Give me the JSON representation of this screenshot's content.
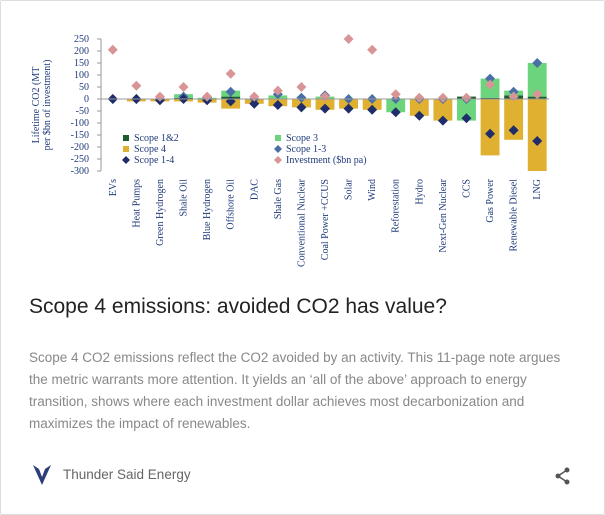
{
  "chart_data": {
    "type": "bar",
    "y_label": [
      "Lifetime CO2 (MT",
      "per $bn of investment)"
    ],
    "categories": [
      "EVs",
      "Heat Pumps",
      "Green Hydrogen",
      "Shale Oil",
      "Blue Hydrogen",
      "Offshore Oil",
      "DAC",
      "Shale Gas",
      "Conventional Nuclear",
      "Coal Power +CCUS",
      "Solar",
      "Wind",
      "Reforestation",
      "Hydro",
      "Next-Gen Nuclear",
      "CCS",
      "Gas Power",
      "Renewable Diesel",
      "LNG"
    ],
    "series": [
      {
        "name": "Scope 1&2",
        "color": "#1e5c2e",
        "kind": "bar",
        "values": [
          0,
          0,
          0,
          5,
          0,
          10,
          0,
          0,
          0,
          0,
          0,
          0,
          0,
          0,
          0,
          10,
          5,
          15,
          10
        ]
      },
      {
        "name": "Scope 3",
        "color": "#6dd47e",
        "kind": "bar",
        "values": [
          0,
          0,
          0,
          15,
          5,
          25,
          0,
          15,
          0,
          10,
          0,
          0,
          -55,
          0,
          0,
          -90,
          80,
          20,
          140
        ]
      },
      {
        "name": "Scope 4",
        "color": "#e0b030",
        "kind": "bar",
        "values": [
          0,
          -10,
          -10,
          -10,
          -15,
          -40,
          -20,
          -30,
          -35,
          -45,
          -40,
          -45,
          0,
          -70,
          -90,
          0,
          -235,
          -170,
          -300
        ]
      },
      {
        "name": "Scope 1-3",
        "color": "#4a6fa5",
        "kind": "diamond",
        "values": [
          0,
          0,
          0,
          10,
          5,
          30,
          0,
          20,
          5,
          15,
          0,
          0,
          0,
          0,
          0,
          0,
          85,
          30,
          150
        ]
      },
      {
        "name": "Scope 1-4",
        "color": "#1f2d6b",
        "kind": "diamond",
        "values": [
          0,
          0,
          -5,
          0,
          -5,
          -10,
          -20,
          -25,
          -35,
          -40,
          -40,
          -45,
          -55,
          -70,
          -90,
          -80,
          -145,
          -130,
          -175
        ]
      },
      {
        "name": "Investment ($bn pa)",
        "color": "#d99595",
        "kind": "diamond",
        "values": [
          205,
          55,
          10,
          50,
          10,
          105,
          10,
          35,
          50,
          10,
          250,
          205,
          20,
          5,
          5,
          5,
          60,
          10,
          20
        ]
      }
    ],
    "ylim": [
      -300,
      250
    ],
    "yticks": [
      -300,
      -250,
      -200,
      -150,
      -100,
      -50,
      0,
      50,
      100,
      150,
      200,
      250
    ]
  },
  "article": {
    "title": "Scope 4 emissions: avoided CO2 has value?",
    "summary": "Scope 4 CO2 emissions reflect the CO2 avoided by an activity. This 11-page note argues the metric warrants more attention. It yields an ‘all of the above’ approach to energy transition, shows where each investment dollar achieves most decarbonization and maximizes the impact of renewables.",
    "author": "Thunder Said Energy"
  }
}
